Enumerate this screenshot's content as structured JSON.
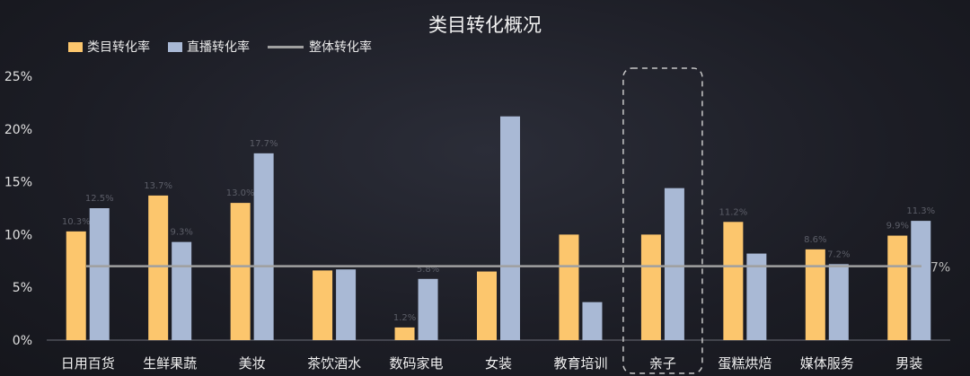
{
  "chart_data": {
    "type": "bar",
    "title": "类目转化概况",
    "categories": [
      "日用百货",
      "生鲜果蔬",
      "美妆",
      "茶饮酒水",
      "数码家电",
      "女装",
      "教育培训",
      "亲子",
      "蛋糕烘焙",
      "媒体服务",
      "男装"
    ],
    "series": [
      {
        "name": "类目转化率",
        "color": "#fcc66d",
        "values": [
          10.3,
          13.7,
          13.0,
          6.6,
          1.2,
          6.5,
          10.0,
          10.0,
          11.2,
          8.6,
          9.9
        ],
        "labels": [
          "10.3%",
          "13.7%",
          "13.0%",
          "",
          "1.2%",
          "",
          "",
          "",
          "11.2%",
          "8.6%",
          "9.9%"
        ]
      },
      {
        "name": "直播转化率",
        "color": "#a9b9d5",
        "values": [
          12.5,
          9.3,
          17.7,
          6.7,
          5.8,
          21.2,
          3.6,
          14.4,
          8.2,
          7.2,
          11.3
        ],
        "labels": [
          "12.5%",
          "9.3%",
          "17.7%",
          "",
          "5.8%",
          "",
          "",
          "",
          "",
          "7.2%",
          "11.3%"
        ]
      }
    ],
    "reference_line": {
      "name": "整体转化率",
      "value": 7,
      "label": "7%",
      "color": "#a0a0a0"
    },
    "y_ticks": [
      "0%",
      "5%",
      "10%",
      "15%",
      "20%",
      "25%"
    ],
    "ylim": [
      0,
      25
    ],
    "highlight_category": "亲子",
    "legend_position": "top-left"
  }
}
